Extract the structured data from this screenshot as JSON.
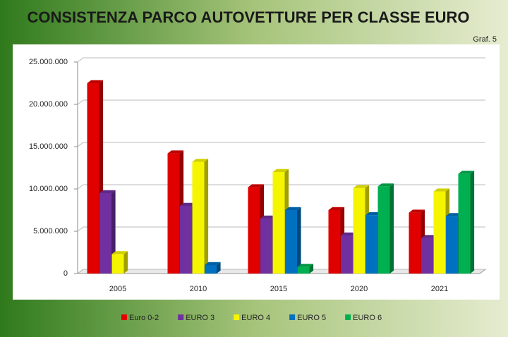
{
  "chart_data": {
    "type": "bar3d",
    "title": "CONSISTENZA PARCO AUTOVETTURE PER CLASSE EURO",
    "subtitle": "Graf. 5",
    "categories": [
      "2005",
      "2010",
      "2015",
      "2020",
      "2021"
    ],
    "series": [
      {
        "name": "Euro 0-2",
        "color": "#e00000",
        "values": [
          22500000,
          14200000,
          10200000,
          7500000,
          7200000
        ]
      },
      {
        "name": "EURO 3",
        "color": "#7030a0",
        "values": [
          9500000,
          8000000,
          6500000,
          4500000,
          4200000
        ]
      },
      {
        "name": "EURO 4",
        "color": "#f5f500",
        "values": [
          2300000,
          13200000,
          12000000,
          10100000,
          9700000
        ]
      },
      {
        "name": "EURO 5",
        "color": "#0070c0",
        "values": [
          null,
          1000000,
          7500000,
          6900000,
          6800000
        ]
      },
      {
        "name": "EURO 6",
        "color": "#00b050",
        "values": [
          null,
          null,
          800000,
          10300000,
          11800000
        ]
      }
    ],
    "ylim": [
      0,
      25000000
    ],
    "yticks": [
      0,
      {
        "value": 5000000,
        "label": "5.000.000"
      },
      {
        "value": 10000000,
        "label": "10.000.000"
      },
      {
        "value": 15000000,
        "label": "15.000.000"
      },
      {
        "value": 20000000,
        "label": "20.000.000"
      },
      {
        "value": 25000000,
        "label": "25.000.000"
      }
    ],
    "grid": true,
    "legend": "bottom"
  }
}
